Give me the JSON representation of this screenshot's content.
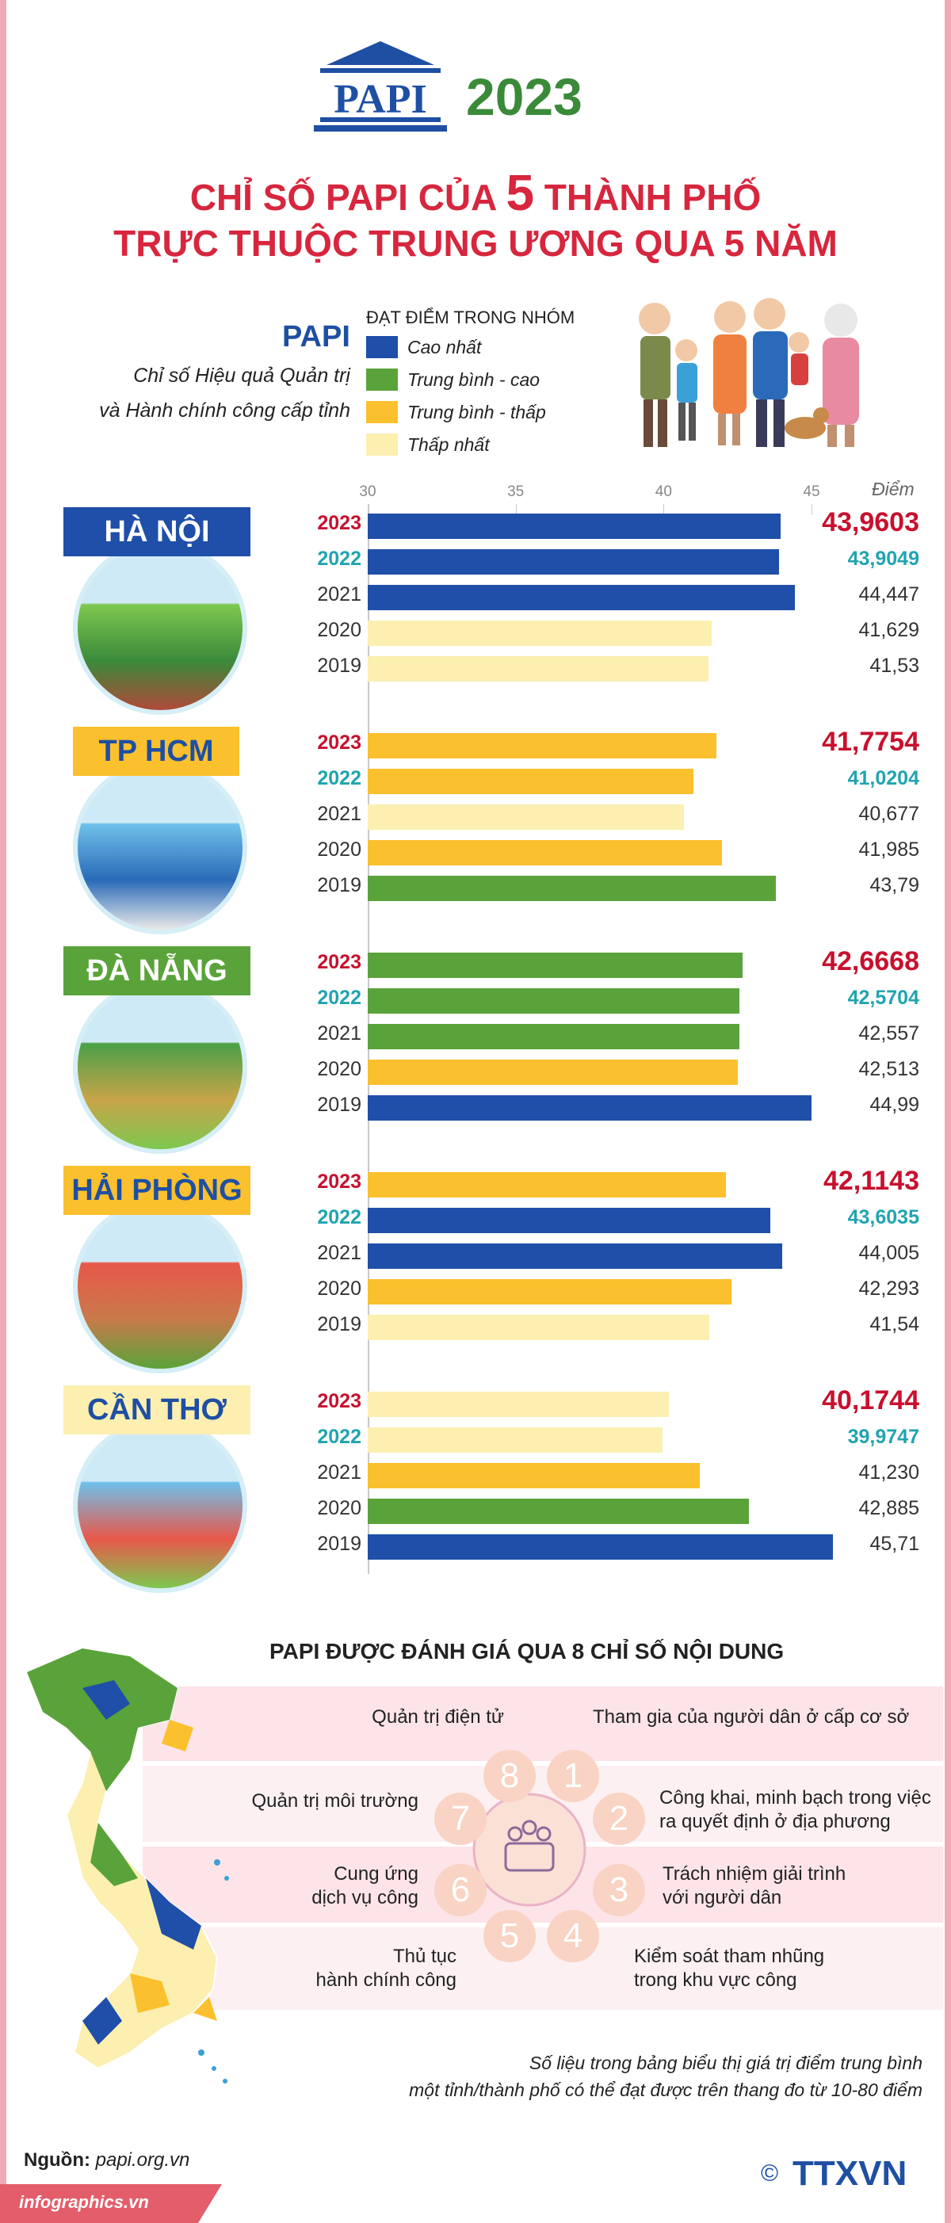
{
  "header": {
    "logo_text": "PAPI",
    "year": "2023",
    "title_line1_pre": "CHỈ SỐ PAPI CỦA ",
    "title_line1_num": "5",
    "title_line1_post": " THÀNH PHỐ",
    "title_line2": "TRỰC THUỘC TRUNG ƯƠNG QUA 5 NĂM"
  },
  "legend": {
    "papi": "PAPI",
    "desc_line1": "Chỉ số Hiệu quả Quản trị",
    "desc_line2": "và Hành chính công cấp tỉnh",
    "title": "ĐẠT ĐIỂM TRONG NHÓM",
    "items": [
      {
        "label": "Cao nhất",
        "color": "#1f4fa8"
      },
      {
        "label": "Trung bình - cao",
        "color": "#5aa33a"
      },
      {
        "label": "Trung bình - thấp",
        "color": "#fbc02d"
      },
      {
        "label": "Thấp nhất",
        "color": "#fcefb0"
      }
    ]
  },
  "chart_data": {
    "type": "bar",
    "orientation": "horizontal",
    "xlim": [
      30,
      45
    ],
    "ticks": [
      "30",
      "35",
      "40",
      "45"
    ],
    "unit_label": "Điểm",
    "groups": [
      {
        "city": "HÀ NỘI",
        "bars": [
          {
            "year": "2023",
            "value": 43.9603,
            "label": "43,9603",
            "group": "Cao nhất"
          },
          {
            "year": "2022",
            "value": 43.9049,
            "label": "43,9049",
            "group": "Cao nhất"
          },
          {
            "year": "2021",
            "value": 44.447,
            "label": "44,447",
            "group": "Cao nhất"
          },
          {
            "year": "2020",
            "value": 41.629,
            "label": "41,629",
            "group": "Thấp nhất"
          },
          {
            "year": "2019",
            "value": 41.53,
            "label": "41,53",
            "group": "Thấp nhất"
          }
        ]
      },
      {
        "city": "TP HCM",
        "bars": [
          {
            "year": "2023",
            "value": 41.7754,
            "label": "41,7754",
            "group": "Trung bình - thấp"
          },
          {
            "year": "2022",
            "value": 41.0204,
            "label": "41,0204",
            "group": "Trung bình - thấp"
          },
          {
            "year": "2021",
            "value": 40.677,
            "label": "40,677",
            "group": "Thấp nhất"
          },
          {
            "year": "2020",
            "value": 41.985,
            "label": "41,985",
            "group": "Trung bình - thấp"
          },
          {
            "year": "2019",
            "value": 43.79,
            "label": "43,79",
            "group": "Trung bình - cao"
          }
        ]
      },
      {
        "city": "ĐÀ NẴNG",
        "bars": [
          {
            "year": "2023",
            "value": 42.6668,
            "label": "42,6668",
            "group": "Trung bình - cao"
          },
          {
            "year": "2022",
            "value": 42.5704,
            "label": "42,5704",
            "group": "Trung bình - cao"
          },
          {
            "year": "2021",
            "value": 42.557,
            "label": "42,557",
            "group": "Trung bình - cao"
          },
          {
            "year": "2020",
            "value": 42.513,
            "label": "42,513",
            "group": "Trung bình - thấp"
          },
          {
            "year": "2019",
            "value": 44.99,
            "label": "44,99",
            "group": "Cao nhất"
          }
        ]
      },
      {
        "city": "HẢI PHÒNG",
        "bars": [
          {
            "year": "2023",
            "value": 42.1143,
            "label": "42,1143",
            "group": "Trung bình - thấp"
          },
          {
            "year": "2022",
            "value": 43.6035,
            "label": "43,6035",
            "group": "Cao nhất"
          },
          {
            "year": "2021",
            "value": 44.005,
            "label": "44,005",
            "group": "Cao nhất"
          },
          {
            "year": "2020",
            "value": 42.293,
            "label": "42,293",
            "group": "Trung bình - thấp"
          },
          {
            "year": "2019",
            "value": 41.54,
            "label": "41,54",
            "group": "Thấp nhất"
          }
        ]
      },
      {
        "city": "CẦN THƠ",
        "bars": [
          {
            "year": "2023",
            "value": 40.1744,
            "label": "40,1744",
            "group": "Thấp nhất"
          },
          {
            "year": "2022",
            "value": 39.9747,
            "label": "39,9747",
            "group": "Thấp nhất"
          },
          {
            "year": "2021",
            "value": 41.23,
            "label": "41,230",
            "group": "Trung bình - thấp"
          },
          {
            "year": "2020",
            "value": 42.885,
            "label": "42,885",
            "group": "Trung bình - cao"
          },
          {
            "year": "2019",
            "value": 45.71,
            "label": "45,71",
            "group": "Cao nhất"
          }
        ]
      }
    ]
  },
  "colors": {
    "cao_nhat": "#1f4fa8",
    "trung_binh_cao": "#5aa33a",
    "trung_binh_thap": "#fbc02d",
    "thap_nhat": "#fcefb0",
    "year_current": "#c8102e",
    "year_previous": "#20a4b0",
    "accent_red": "#d7263d",
    "band_pink": "#fce4e8"
  },
  "indices": {
    "title": "PAPI ĐƯỢC ĐÁNH GIÁ QUA 8 CHỈ SỐ NỘI DUNG",
    "items": [
      {
        "num": "1",
        "label": "Tham gia của người dân ở cấp cơ sở"
      },
      {
        "num": "2",
        "label": "Công khai, minh bạch trong việc\nra quyết định ở địa phương"
      },
      {
        "num": "3",
        "label": "Trách nhiệm giải trình\nvới người dân"
      },
      {
        "num": "4",
        "label": "Kiểm soát tham nhũng\ntrong khu vực công"
      },
      {
        "num": "5",
        "label": "Thủ tục\nhành chính công"
      },
      {
        "num": "6",
        "label": "Cung ứng\ndịch vụ công"
      },
      {
        "num": "7",
        "label": "Quản trị môi trường"
      },
      {
        "num": "8",
        "label": "Quản trị điện tử"
      }
    ]
  },
  "footer": {
    "note_line1": "Số liệu trong bảng biểu thị giá trị điểm trung bình",
    "note_line2": "một tỉnh/thành phố có thể đạt được trên thang đo từ 10-80 điểm",
    "source_label": "Nguồn:",
    "source_value": "papi.org.vn",
    "site": "infographics.vn",
    "agency": "TTXVN",
    "copyright": "©"
  }
}
